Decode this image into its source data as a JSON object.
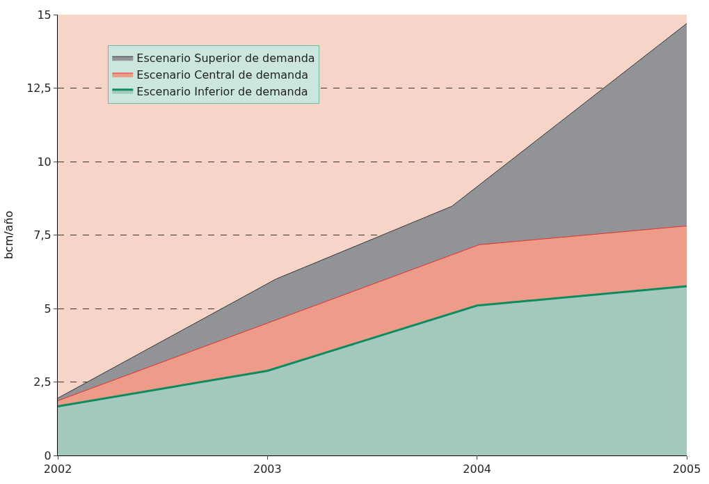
{
  "chart_data": {
    "type": "area",
    "ylabel": "bcm/año",
    "legend": "top left",
    "grid": "y",
    "line_style": "solid",
    "xlim": [
      2002,
      2005
    ],
    "xticks": [
      {
        "value": 2002,
        "label": "2002"
      },
      {
        "value": 2003,
        "label": "2003"
      },
      {
        "value": 2004,
        "label": "2004"
      },
      {
        "value": 2005,
        "label": "2005"
      }
    ],
    "ylim": [
      0,
      15
    ],
    "yticks": [
      0,
      {
        "value": 2.5,
        "label": "2,5"
      },
      5,
      {
        "value": 7.5,
        "label": "7,5"
      },
      10,
      {
        "value": 12.5,
        "label": "12,5"
      },
      15
    ],
    "series": [
      {
        "name": "Escenario Superior de demanda",
        "color": "#929397",
        "x": [
          2002,
          2003.04,
          2003.88,
          2005
        ],
        "values": [
          1.95,
          6.0,
          8.48,
          14.7
        ]
      },
      {
        "name": "Escenario Central de demanda",
        "color": "#ec9c88",
        "x": [
          2002,
          2004.01,
          2005
        ],
        "values": [
          1.86,
          7.17,
          7.81
        ]
      },
      {
        "name": "Escenario Inferior de demanda",
        "color": "#a3c9bf",
        "x": [
          2002,
          2003,
          2004,
          2005
        ],
        "values": [
          1.67,
          2.88,
          5.1,
          5.76
        ]
      }
    ]
  }
}
